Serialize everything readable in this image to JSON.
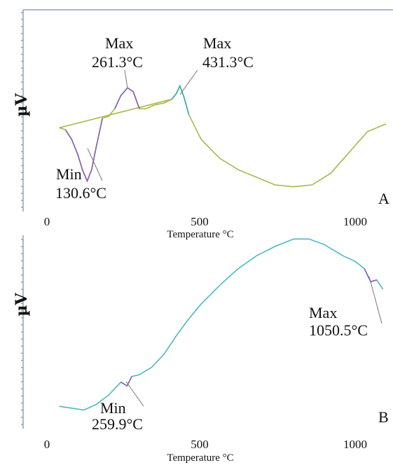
{
  "chart_data": [
    {
      "type": "line",
      "panel_label": "A",
      "xlabel": "Temperature °C",
      "ylabel": "µV",
      "xlim": [
        -30,
        1110
      ],
      "ylim": [
        -4.2,
        6.4
      ],
      "xticks": [
        {
          "v": 0,
          "label": "0"
        },
        {
          "v": 500,
          "label": "500"
        },
        {
          "v": 1000,
          "label": "1000"
        }
      ],
      "series": [
        {
          "x": [
            40,
            60,
            80,
            100,
            115,
            130.6,
            145,
            160,
            180,
            200,
            220,
            240,
            261.3,
            280,
            300,
            320,
            350,
            380,
            405,
            420,
            431.3,
            445,
            460,
            500,
            560,
            620,
            680,
            740,
            800,
            860,
            920,
            980,
            1040,
            1100
          ],
          "y": [
            0.2,
            0.1,
            -0.4,
            -1.2,
            -2.0,
            -2.6,
            -2.0,
            -0.8,
            0.7,
            0.8,
            1.2,
            1.9,
            2.3,
            2.1,
            1.2,
            1.2,
            1.4,
            1.5,
            1.7,
            2.0,
            2.4,
            1.8,
            0.9,
            -0.4,
            -1.4,
            -2.0,
            -2.4,
            -2.8,
            -2.9,
            -2.8,
            -2.2,
            -1.1,
            0.0,
            0.4
          ]
        },
        {
          "role": "baseline",
          "x": [
            40,
            405
          ],
          "y": [
            0.2,
            1.7
          ]
        }
      ],
      "annotations": [
        {
          "label": "Max",
          "value": "261.3°C",
          "x": 261.3
        },
        {
          "label": "Max",
          "value": "431.3°C",
          "x": 431.3
        },
        {
          "label": "Min",
          "value": "130.6°C",
          "x": 130.6
        }
      ]
    },
    {
      "type": "line",
      "panel_label": "B",
      "xlabel": "Temperature °C",
      "ylabel": "µV",
      "xlim": [
        -30,
        1110
      ],
      "ylim": [
        -5.2,
        5.2
      ],
      "xticks": [
        {
          "v": 0,
          "label": "0"
        },
        {
          "v": 500,
          "label": "500"
        },
        {
          "v": 1000,
          "label": "1000"
        }
      ],
      "series": [
        {
          "x": [
            40,
            80,
            120,
            160,
            200,
            240,
            259.9,
            275,
            300,
            340,
            380,
            420,
            460,
            500,
            560,
            620,
            680,
            740,
            800,
            850,
            900,
            960,
            1000,
            1030,
            1050.5,
            1070,
            1090
          ],
          "y": [
            -4.0,
            -4.1,
            -4.2,
            -3.9,
            -3.4,
            -2.7,
            -2.9,
            -2.4,
            -2.3,
            -1.9,
            -1.2,
            -0.2,
            0.7,
            1.5,
            2.5,
            3.4,
            4.1,
            4.6,
            5.0,
            5.0,
            4.7,
            4.1,
            3.8,
            3.4,
            2.7,
            2.8,
            2.3
          ]
        }
      ],
      "annotations": [
        {
          "label": "Max",
          "value": "1050.5°C",
          "x": 1050.5
        },
        {
          "label": "Min",
          "value": "259.9°C",
          "x": 259.9
        }
      ]
    }
  ]
}
